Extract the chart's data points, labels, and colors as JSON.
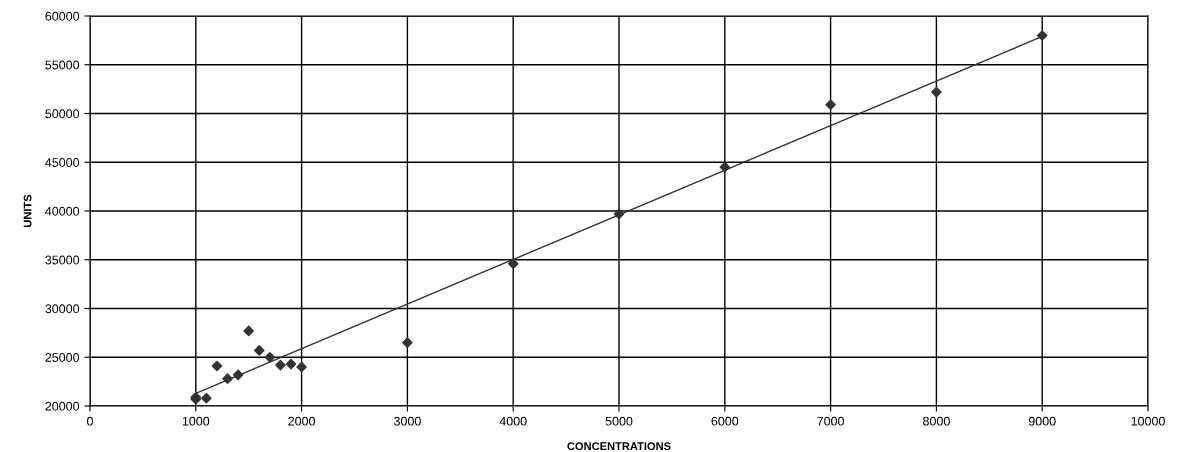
{
  "chart_data": {
    "type": "scatter",
    "xlabel": "CONCENTRATIONS",
    "ylabel": "UNITS",
    "series": [
      {
        "color": "#333333",
        "marker": "diamond",
        "x": [
          1000,
          1000,
          1100,
          1200,
          1300,
          1400,
          1500,
          1600,
          1700,
          1800,
          1900,
          2000,
          3000,
          4000,
          5000,
          6000,
          7000,
          8000,
          9000
        ],
        "values": [
          20700,
          20900,
          20800,
          24100,
          22800,
          23200,
          27700,
          25700,
          25000,
          24200,
          24300,
          24000,
          26500,
          34600,
          39700,
          44500,
          50900,
          52200,
          58000
        ]
      },
      {
        "type": "line",
        "color": "#333333",
        "marker": "none",
        "line_style": "solid",
        "x": [
          1000,
          9000
        ],
        "values": [
          21300,
          57900
        ]
      }
    ],
    "xlim": [
      0,
      10000
    ],
    "xticks": [
      0,
      1000,
      2000,
      3000,
      4000,
      5000,
      6000,
      7000,
      8000,
      9000,
      10000
    ],
    "ylim": [
      20000,
      60000
    ],
    "yticks": [
      20000,
      25000,
      30000,
      35000,
      40000,
      45000,
      50000,
      55000,
      60000
    ],
    "grid": true,
    "legend": false
  }
}
